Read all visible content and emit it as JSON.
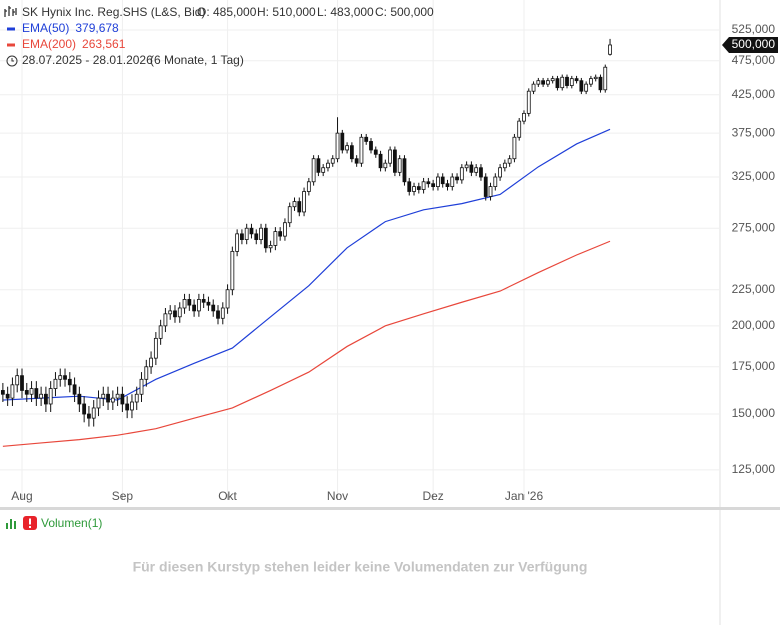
{
  "header": {
    "title": "SK Hynix Inc. Reg.SHS (L&S, Bid)",
    "ohlc": [
      "O: 485,000",
      "H: 510,000",
      "L: 483,000",
      "C: 500,000"
    ],
    "range": "28.07.2025 - 28.01.2026",
    "period": "(6 Monate, 1 Tag)"
  },
  "chart_data": {
    "type": "candlestick",
    "log_scale": true,
    "grid": true,
    "ylim": [
      110400,
      579000
    ],
    "xlim": [
      -0.6,
      150
    ],
    "yticks": [
      {
        "value": 125000,
        "label": "125,000"
      },
      {
        "value": 150000,
        "label": "150,000"
      },
      {
        "value": 175000,
        "label": "175,000"
      },
      {
        "value": 200000,
        "label": "200,000"
      },
      {
        "value": 225000,
        "label": "225,000"
      },
      {
        "value": 275000,
        "label": "275,000"
      },
      {
        "value": 325000,
        "label": "325,000"
      },
      {
        "value": 375000,
        "label": "375,000"
      },
      {
        "value": 425000,
        "label": "425,000"
      },
      {
        "value": 475000,
        "label": "475,000"
      },
      {
        "value": 525000,
        "label": "525,000"
      }
    ],
    "xticks": [
      {
        "value": 4,
        "label": "Aug"
      },
      {
        "value": 25,
        "label": "Sep"
      },
      {
        "value": 47,
        "label": "Okt"
      },
      {
        "value": 70,
        "label": "Nov"
      },
      {
        "value": 90,
        "label": "Dez"
      },
      {
        "value": 109,
        "label": "Jan '26"
      }
    ],
    "last_price": {
      "value": 500000,
      "label": "500,000"
    },
    "candles": {
      "open": [
        162000,
        160000,
        158000,
        165000,
        170000,
        162000,
        160000,
        163000,
        158000,
        160000,
        155000,
        163000,
        168000,
        170000,
        168000,
        165000,
        160000,
        155000,
        150000,
        148000,
        153000,
        158000,
        160000,
        156000,
        158000,
        160000,
        155000,
        152000,
        156000,
        160000,
        168000,
        175000,
        180000,
        192000,
        200000,
        208000,
        210000,
        206000,
        212000,
        218000,
        214000,
        210000,
        218000,
        216000,
        214000,
        210000,
        205000,
        212000,
        225000,
        255000,
        270000,
        265000,
        275000,
        270000,
        265000,
        275000,
        258000,
        260000,
        272000,
        268000,
        280000,
        295000,
        300000,
        290000,
        310000,
        320000,
        345000,
        330000,
        335000,
        340000,
        345000,
        375000,
        355000,
        360000,
        345000,
        340000,
        370000,
        365000,
        355000,
        350000,
        335000,
        340000,
        355000,
        330000,
        345000,
        320000,
        310000,
        315000,
        312000,
        320000,
        318000,
        315000,
        325000,
        318000,
        315000,
        325000,
        322000,
        335000,
        338000,
        330000,
        335000,
        325000,
        305000,
        315000,
        325000,
        335000,
        340000,
        345000,
        370000,
        390000,
        400000,
        430000,
        440000,
        445000,
        440000,
        445000,
        448000,
        435000,
        450000,
        438000,
        448000,
        445000,
        430000,
        440000,
        448000,
        450000,
        432000,
        485000
      ],
      "high": [
        166000,
        164000,
        169000,
        174000,
        174000,
        166000,
        167000,
        167000,
        164000,
        164000,
        167000,
        172000,
        174000,
        174000,
        172000,
        169000,
        164000,
        159000,
        154000,
        157000,
        162000,
        164000,
        164000,
        162000,
        164000,
        164000,
        159000,
        160000,
        164000,
        172000,
        179000,
        184000,
        196000,
        204000,
        212000,
        214000,
        214000,
        216000,
        222000,
        222000,
        218000,
        222000,
        222000,
        220000,
        218000,
        214000,
        216000,
        229000,
        259000,
        274000,
        274000,
        279000,
        279000,
        274000,
        279000,
        279000,
        264000,
        276000,
        276000,
        284000,
        299000,
        304000,
        304000,
        314000,
        324000,
        349000,
        349000,
        339000,
        344000,
        349000,
        395000,
        379000,
        364000,
        364000,
        349000,
        374000,
        374000,
        369000,
        359000,
        354000,
        344000,
        359000,
        359000,
        349000,
        349000,
        324000,
        319000,
        319000,
        324000,
        324000,
        322000,
        329000,
        329000,
        322000,
        329000,
        329000,
        339000,
        342000,
        342000,
        339000,
        339000,
        329000,
        319000,
        329000,
        339000,
        344000,
        349000,
        374000,
        394000,
        404000,
        434000,
        444000,
        449000,
        449000,
        449000,
        452000,
        452000,
        454000,
        454000,
        452000,
        452000,
        449000,
        444000,
        452000,
        454000,
        454000,
        469000,
        510000
      ],
      "low": [
        156000,
        154000,
        154000,
        161000,
        158000,
        156000,
        156000,
        154000,
        154000,
        151000,
        151000,
        159000,
        164000,
        164000,
        161000,
        156000,
        151000,
        146000,
        144000,
        144000,
        149000,
        154000,
        152000,
        152000,
        154000,
        151000,
        148000,
        148000,
        152000,
        156000,
        164000,
        171000,
        176000,
        188000,
        196000,
        204000,
        202000,
        202000,
        208000,
        210000,
        206000,
        206000,
        212000,
        210000,
        206000,
        201000,
        201000,
        208000,
        221000,
        251000,
        261000,
        261000,
        266000,
        261000,
        261000,
        254000,
        254000,
        256000,
        264000,
        264000,
        276000,
        291000,
        286000,
        286000,
        306000,
        316000,
        326000,
        326000,
        331000,
        336000,
        341000,
        351000,
        351000,
        341000,
        336000,
        336000,
        361000,
        351000,
        346000,
        331000,
        331000,
        336000,
        326000,
        326000,
        316000,
        306000,
        306000,
        308000,
        308000,
        314000,
        311000,
        311000,
        314000,
        311000,
        311000,
        318000,
        318000,
        331000,
        326000,
        326000,
        321000,
        301000,
        301000,
        311000,
        321000,
        331000,
        336000,
        341000,
        366000,
        386000,
        396000,
        426000,
        436000,
        436000,
        436000,
        441000,
        431000,
        431000,
        434000,
        434000,
        441000,
        426000,
        426000,
        436000,
        444000,
        428000,
        428000,
        483000
      ],
      "close": [
        160000,
        158000,
        165000,
        170000,
        162000,
        160000,
        163000,
        158000,
        160000,
        155000,
        163000,
        168000,
        170000,
        168000,
        165000,
        160000,
        155000,
        150000,
        148000,
        153000,
        158000,
        160000,
        156000,
        158000,
        160000,
        155000,
        152000,
        156000,
        160000,
        168000,
        175000,
        180000,
        192000,
        200000,
        208000,
        210000,
        206000,
        212000,
        218000,
        214000,
        210000,
        218000,
        216000,
        214000,
        210000,
        205000,
        212000,
        225000,
        255000,
        270000,
        265000,
        275000,
        270000,
        265000,
        275000,
        258000,
        260000,
        272000,
        268000,
        280000,
        295000,
        300000,
        290000,
        310000,
        320000,
        345000,
        330000,
        335000,
        340000,
        345000,
        375000,
        355000,
        360000,
        345000,
        340000,
        370000,
        365000,
        355000,
        350000,
        335000,
        340000,
        355000,
        330000,
        345000,
        320000,
        310000,
        315000,
        312000,
        320000,
        318000,
        315000,
        325000,
        318000,
        315000,
        325000,
        322000,
        335000,
        338000,
        330000,
        335000,
        325000,
        305000,
        315000,
        325000,
        335000,
        340000,
        345000,
        370000,
        390000,
        400000,
        430000,
        440000,
        445000,
        440000,
        445000,
        448000,
        435000,
        450000,
        438000,
        448000,
        445000,
        430000,
        440000,
        448000,
        450000,
        432000,
        465000,
        500000
      ]
    },
    "series": [
      {
        "name": "EMA(50)",
        "color": "#1f3fd8",
        "value_labels": "379,678",
        "x": [
          0,
          8,
          16,
          24,
          32,
          40,
          48,
          56,
          64,
          72,
          80,
          88,
          96,
          104,
          112,
          120,
          127
        ],
        "values": [
          157000,
          158000,
          159000,
          157000,
          168000,
          177000,
          186000,
          206000,
          228000,
          258000,
          281000,
          292000,
          298000,
          307000,
          336000,
          362000,
          379678
        ]
      },
      {
        "name": "EMA(200)",
        "color": "#e8473b",
        "value_labels": "263,561",
        "x": [
          0,
          8,
          16,
          24,
          32,
          40,
          48,
          56,
          64,
          72,
          80,
          88,
          96,
          104,
          112,
          120,
          127
        ],
        "values": [
          135000,
          136500,
          138000,
          140000,
          143000,
          148000,
          153000,
          162000,
          172000,
          187000,
          200000,
          208000,
          216000,
          224000,
          238000,
          252000,
          263561
        ]
      }
    ]
  },
  "volume_panel": {
    "label": "Volumen(1)",
    "message": "Für diesen Kurstyp stehen leider keine Volumendaten zur Verfügung"
  }
}
